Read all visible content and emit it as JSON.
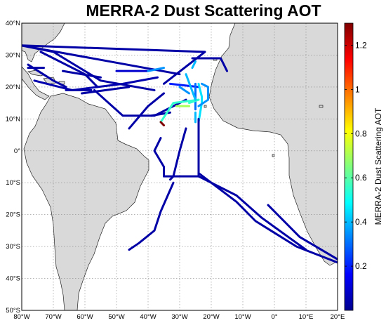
{
  "title": "MERRA-2 Dust Scattering AOT",
  "map": {
    "lon_range": [
      -80,
      20
    ],
    "lat_range": [
      -50,
      40
    ],
    "lon_ticks": [
      "80°W",
      "70°W",
      "60°W",
      "50°W",
      "40°W",
      "30°W",
      "20°W",
      "10°W",
      "0°",
      "10°E",
      "20°E"
    ],
    "lat_ticks": [
      "40°N",
      "30°N",
      "20°N",
      "10°N",
      "0°",
      "10°S",
      "20°S",
      "30°S",
      "40°S",
      "50°S"
    ],
    "land_color": "#d9d9d9",
    "ocean_color": "#ffffff",
    "grid": "dotted"
  },
  "colorbar": {
    "label": "MERRA-2 Dust Scattering AOT",
    "min": 0,
    "max": 1.3,
    "ticks": [
      "0.2",
      "0.4",
      "0.6",
      "0.8",
      "1",
      "1.2"
    ],
    "tick_values": [
      0.2,
      0.4,
      0.6,
      0.8,
      1.0,
      1.2
    ],
    "colormap": "jet"
  },
  "flight_tracks": [
    {
      "points": [
        [
          -80,
          33
        ],
        [
          -30,
          24
        ]
      ],
      "aot": 0.05
    },
    {
      "points": [
        [
          -80,
          33
        ],
        [
          -22,
          31
        ],
        [
          -35,
          21
        ]
      ],
      "aot": 0.05
    },
    {
      "points": [
        [
          -80,
          33
        ],
        [
          -70,
          31
        ],
        [
          -55,
          22
        ],
        [
          -38,
          19
        ]
      ],
      "aot": 0.05
    },
    {
      "points": [
        [
          -74,
          31
        ],
        [
          -60,
          24
        ],
        [
          -56,
          20
        ]
      ],
      "aot": 0.05
    },
    {
      "points": [
        [
          -78,
          27
        ],
        [
          -70,
          22
        ],
        [
          -66,
          20
        ]
      ],
      "aot": 0.05
    },
    {
      "points": [
        [
          -76,
          22
        ],
        [
          -64,
          19
        ],
        [
          -48,
          21
        ],
        [
          -37,
          23
        ]
      ],
      "aot": 0.06
    },
    {
      "points": [
        [
          -78,
          26
        ],
        [
          -73,
          26
        ]
      ],
      "aot": 0.05
    },
    {
      "points": [
        [
          -67,
          25
        ],
        [
          -55,
          23
        ]
      ],
      "aot": 0.05
    },
    {
      "points": [
        [
          -66,
          19
        ],
        [
          -58,
          19
        ]
      ],
      "aot": 0.05
    },
    {
      "points": [
        [
          -61,
          18
        ],
        [
          -46,
          20
        ]
      ],
      "aot": 0.05
    },
    {
      "points": [
        [
          -50,
          25
        ],
        [
          -40,
          25
        ]
      ],
      "aot": 0.1
    },
    {
      "points": [
        [
          -40,
          25
        ],
        [
          -35,
          26
        ]
      ],
      "aot": 0.35
    },
    {
      "points": [
        [
          -57,
          19
        ],
        [
          -48,
          11
        ],
        [
          -38,
          11
        ],
        [
          -28,
          16
        ]
      ],
      "aot": 0.05
    },
    {
      "points": [
        [
          -35,
          18
        ],
        [
          -40,
          14
        ],
        [
          -46,
          7
        ]
      ],
      "aot": 0.05
    },
    {
      "points": [
        [
          -39,
          11
        ],
        [
          -33,
          12
        ]
      ],
      "aot": 0.05
    },
    {
      "points": [
        [
          -33,
          21
        ],
        [
          -24,
          20
        ]
      ],
      "aot": 0.2
    },
    {
      "points": [
        [
          -30,
          20
        ],
        [
          -27,
          18
        ]
      ],
      "aot": 0.35
    },
    {
      "points": [
        [
          -25,
          21
        ],
        [
          -25,
          13
        ]
      ],
      "aot": 0.3
    },
    {
      "points": [
        [
          -24,
          16
        ],
        [
          -32,
          15
        ],
        [
          -36,
          9
        ]
      ],
      "aot": 0.55
    },
    {
      "points": [
        [
          -31,
          14
        ],
        [
          -27,
          14
        ]
      ],
      "aot": 0.7
    },
    {
      "points": [
        [
          -27,
          15
        ],
        [
          -24,
          16
        ]
      ],
      "aot": 0.55
    },
    {
      "points": [
        [
          -36,
          9
        ],
        [
          -35,
          8
        ]
      ],
      "aot": 1.3
    },
    {
      "points": [
        [
          -24,
          21
        ],
        [
          -23,
          17
        ],
        [
          -23,
          15
        ],
        [
          -24,
          9
        ]
      ],
      "aot": 0.45
    },
    {
      "points": [
        [
          -23,
          21
        ],
        [
          -21,
          20
        ],
        [
          -21,
          16
        ],
        [
          -24,
          14
        ]
      ],
      "aot": 0.35
    },
    {
      "points": [
        [
          -25,
          12
        ],
        [
          -25,
          9
        ]
      ],
      "aot": 0.4
    },
    {
      "points": [
        [
          -25,
          28
        ],
        [
          -26,
          26
        ]
      ],
      "aot": 0.4
    },
    {
      "points": [
        [
          -26,
          29
        ],
        [
          -17,
          29
        ],
        [
          -15,
          25
        ]
      ],
      "aot": 0.05
    },
    {
      "points": [
        [
          -28,
          24
        ],
        [
          -25,
          16
        ]
      ],
      "aot": 0.4
    },
    {
      "points": [
        [
          -36,
          4
        ],
        [
          -38,
          0
        ],
        [
          -35,
          -5
        ],
        [
          -35,
          -8
        ]
      ],
      "aot": 0.05
    },
    {
      "points": [
        [
          -35,
          -8
        ],
        [
          -24,
          -8
        ],
        [
          -24,
          10
        ]
      ],
      "aot": 0.05
    },
    {
      "points": [
        [
          -28,
          7
        ],
        [
          -30,
          0
        ],
        [
          -32,
          -8
        ],
        [
          -33,
          -9
        ]
      ],
      "aot": 0.05
    },
    {
      "points": [
        [
          -32,
          -10
        ],
        [
          -36,
          -19
        ],
        [
          -38,
          -25
        ],
        [
          -43,
          -29
        ],
        [
          -46,
          -31
        ]
      ],
      "aot": 0.05
    },
    {
      "points": [
        [
          -24,
          -7
        ],
        [
          -12,
          -16
        ],
        [
          -6,
          -22
        ],
        [
          7,
          -30
        ],
        [
          20,
          -35
        ]
      ],
      "aot": 0.05
    },
    {
      "points": [
        [
          -24,
          -8
        ],
        [
          -12,
          -14
        ],
        [
          -4,
          -21
        ],
        [
          10,
          -31
        ]
      ],
      "aot": 0.05
    },
    {
      "points": [
        [
          -2,
          -17
        ],
        [
          8,
          -27
        ],
        [
          20,
          -34
        ]
      ],
      "aot": 0.05
    }
  ]
}
